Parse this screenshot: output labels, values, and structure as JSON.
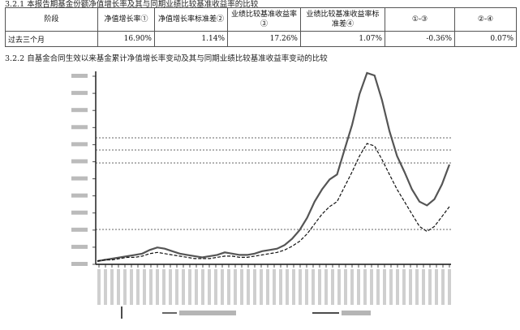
{
  "headings": {
    "table": "3.2.1 本报告期基金份额净值增长率及其与同期业绩比较基准收益率的比较",
    "chart": "3.2.2 自基金合同生效以来基金累计净值增长率变动及其与同期业绩比较基准收益率变动的比较"
  },
  "table": {
    "headers": [
      "阶段",
      "净值增长率①",
      "净值增长率标准差②",
      "业绩比较基准收益率③",
      "业绩比较基准收益率标准差④",
      "①-③",
      "②-④"
    ],
    "rows": [
      [
        "过去三个月",
        "16.90%",
        "1.14%",
        "17.26%",
        "1.07%",
        "-0.36%",
        "0.07%"
      ]
    ]
  },
  "chart_data": {
    "type": "line",
    "series": [
      {
        "values": [
          0,
          1,
          2,
          3,
          4,
          5,
          6,
          9,
          11,
          10,
          8,
          6,
          5,
          4,
          3,
          4,
          5,
          7,
          6,
          5,
          5,
          6,
          8,
          9,
          10,
          13,
          18,
          25,
          35,
          48,
          58,
          66,
          70,
          90,
          110,
          135,
          152,
          150,
          130,
          105,
          85,
          72,
          58,
          48,
          45,
          50,
          62,
          78
        ]
      },
      {
        "values": [
          0,
          1,
          1,
          2,
          3,
          3,
          4,
          6,
          7,
          6,
          5,
          4,
          3,
          2,
          2,
          2,
          3,
          4,
          4,
          3,
          3,
          4,
          5,
          6,
          7,
          9,
          12,
          16,
          22,
          30,
          38,
          44,
          48,
          60,
          72,
          85,
          95,
          93,
          82,
          70,
          58,
          48,
          38,
          28,
          24,
          28,
          36,
          44
        ]
      }
    ]
  }
}
